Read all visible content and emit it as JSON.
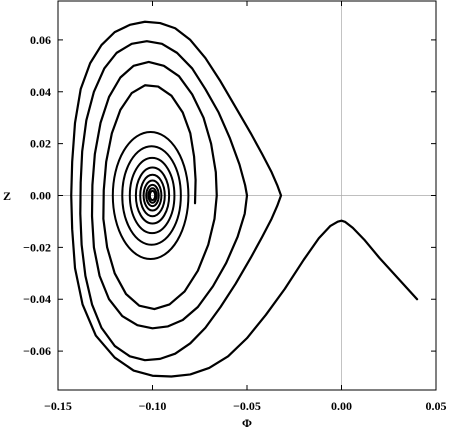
{
  "chart_data": {
    "type": "line",
    "title": "",
    "xlabel": "Φ",
    "ylabel": "Z",
    "xlim": [
      -0.15,
      0.05
    ],
    "ylim": [
      -0.075,
      0.075
    ],
    "x_ticks": [
      -0.15,
      -0.1,
      -0.05,
      0.0,
      0.05
    ],
    "x_tick_labels": [
      "−0.15",
      "−0.10",
      "−0.05",
      "0.00",
      "0.05"
    ],
    "y_ticks": [
      -0.06,
      -0.04,
      -0.02,
      0.0,
      0.02,
      0.04,
      0.06
    ],
    "y_tick_labels": [
      "−0.06",
      "−0.04",
      "−0.02",
      "0.00",
      "0.02",
      "0.04",
      "0.06"
    ],
    "reference_lines": {
      "x": 0.0,
      "y": 0.0
    },
    "grid": false,
    "legend": "none",
    "line_color": "#000000",
    "series": [
      {
        "points": [
          [
            0.04,
            -0.04
          ],
          [
            0.03,
            -0.032
          ],
          [
            0.02,
            -0.024
          ],
          [
            0.012,
            -0.017
          ],
          [
            0.006,
            -0.0125
          ],
          [
            0.002,
            -0.0102
          ],
          [
            0.0,
            -0.0097
          ],
          [
            -0.002,
            -0.0101
          ],
          [
            -0.006,
            -0.0118
          ],
          [
            -0.012,
            -0.0165
          ],
          [
            -0.02,
            -0.0248
          ],
          [
            -0.03,
            -0.036
          ],
          [
            -0.04,
            -0.046
          ],
          [
            -0.05,
            -0.055
          ],
          [
            -0.06,
            -0.062
          ],
          [
            -0.07,
            -0.0665
          ],
          [
            -0.08,
            -0.069
          ],
          [
            -0.09,
            -0.0698
          ],
          [
            -0.1,
            -0.0695
          ],
          [
            -0.11,
            -0.0675
          ],
          [
            -0.12,
            -0.0625
          ],
          [
            -0.13,
            -0.054
          ],
          [
            -0.137,
            -0.042
          ],
          [
            -0.141,
            -0.028
          ],
          [
            -0.1425,
            -0.013
          ],
          [
            -0.143,
            0.0
          ],
          [
            -0.1425,
            0.013
          ],
          [
            -0.141,
            0.028
          ],
          [
            -0.138,
            0.041
          ],
          [
            -0.133,
            0.051
          ],
          [
            -0.127,
            0.058
          ],
          [
            -0.12,
            0.063
          ],
          [
            -0.112,
            0.0658
          ],
          [
            -0.104,
            0.067
          ],
          [
            -0.096,
            0.0665
          ],
          [
            -0.088,
            0.0645
          ],
          [
            -0.08,
            0.06
          ],
          [
            -0.072,
            0.053
          ],
          [
            -0.064,
            0.044
          ],
          [
            -0.056,
            0.034
          ],
          [
            -0.048,
            0.024
          ],
          [
            -0.042,
            0.016
          ],
          [
            -0.037,
            0.009
          ],
          [
            -0.034,
            0.004
          ],
          [
            -0.032,
            0.0
          ],
          [
            -0.034,
            -0.004
          ],
          [
            -0.037,
            -0.009
          ],
          [
            -0.042,
            -0.016
          ],
          [
            -0.048,
            -0.024
          ],
          [
            -0.056,
            -0.034
          ],
          [
            -0.064,
            -0.043
          ],
          [
            -0.072,
            -0.051
          ],
          [
            -0.08,
            -0.057
          ],
          [
            -0.088,
            -0.061
          ],
          [
            -0.096,
            -0.063
          ],
          [
            -0.104,
            -0.0635
          ],
          [
            -0.112,
            -0.062
          ],
          [
            -0.12,
            -0.058
          ],
          [
            -0.127,
            -0.051
          ],
          [
            -0.132,
            -0.042
          ],
          [
            -0.1355,
            -0.031
          ],
          [
            -0.1375,
            -0.019
          ],
          [
            -0.1382,
            -0.007
          ],
          [
            -0.138,
            0.005
          ],
          [
            -0.1372,
            0.017
          ],
          [
            -0.135,
            0.029
          ],
          [
            -0.131,
            0.04
          ],
          [
            -0.1255,
            0.049
          ],
          [
            -0.119,
            0.055
          ],
          [
            -0.111,
            0.0585
          ],
          [
            -0.103,
            0.0595
          ],
          [
            -0.095,
            0.0585
          ],
          [
            -0.087,
            0.055
          ],
          [
            -0.079,
            0.049
          ],
          [
            -0.072,
            0.041
          ],
          [
            -0.065,
            0.032
          ],
          [
            -0.059,
            0.022
          ],
          [
            -0.054,
            0.012
          ],
          [
            -0.051,
            0.004
          ],
          [
            -0.05,
            0.0
          ],
          [
            -0.0512,
            -0.007
          ],
          [
            -0.055,
            -0.016
          ],
          [
            -0.061,
            -0.026
          ],
          [
            -0.068,
            -0.035
          ],
          [
            -0.076,
            -0.043
          ],
          [
            -0.084,
            -0.048
          ],
          [
            -0.092,
            -0.0505
          ],
          [
            -0.1,
            -0.0512
          ],
          [
            -0.108,
            -0.05
          ],
          [
            -0.116,
            -0.0465
          ],
          [
            -0.123,
            -0.04
          ],
          [
            -0.128,
            -0.031
          ],
          [
            -0.131,
            -0.02
          ],
          [
            -0.132,
            -0.008
          ],
          [
            -0.1318,
            0.004
          ],
          [
            -0.1305,
            0.016
          ],
          [
            -0.1275,
            0.028
          ],
          [
            -0.123,
            0.038
          ],
          [
            -0.117,
            0.0455
          ],
          [
            -0.11,
            0.05
          ],
          [
            -0.102,
            0.0515
          ],
          [
            -0.094,
            0.05
          ],
          [
            -0.086,
            0.046
          ],
          [
            -0.079,
            0.039
          ],
          [
            -0.073,
            0.03
          ],
          [
            -0.069,
            0.02
          ],
          [
            -0.0665,
            0.009
          ],
          [
            -0.066,
            0.0
          ],
          [
            -0.0672,
            -0.009
          ],
          [
            -0.0705,
            -0.019
          ],
          [
            -0.076,
            -0.029
          ],
          [
            -0.083,
            -0.037
          ],
          [
            -0.091,
            -0.042
          ],
          [
            -0.099,
            -0.0438
          ],
          [
            -0.107,
            -0.0425
          ],
          [
            -0.114,
            -0.038
          ],
          [
            -0.12,
            -0.03
          ],
          [
            -0.124,
            -0.02
          ],
          [
            -0.126,
            -0.009
          ],
          [
            -0.1258,
            0.002
          ],
          [
            -0.1245,
            0.013
          ],
          [
            -0.1215,
            0.024
          ],
          [
            -0.117,
            0.033
          ],
          [
            -0.111,
            0.0395
          ],
          [
            -0.104,
            0.0425
          ],
          [
            -0.097,
            0.042
          ],
          [
            -0.09,
            0.0385
          ],
          [
            -0.084,
            0.032
          ],
          [
            -0.08,
            0.024
          ],
          [
            -0.078,
            0.015
          ],
          [
            -0.0772,
            0.006
          ],
          [
            -0.0775,
            -0.003
          ]
        ]
      }
    ],
    "closed_orbits": [
      {
        "center": [
          -0.101,
          0.0
        ],
        "half_width": 0.02,
        "half_height": 0.0245
      },
      {
        "center": [
          -0.1005,
          0.0
        ],
        "half_width": 0.0155,
        "half_height": 0.019
      },
      {
        "center": [
          -0.1002,
          0.0
        ],
        "half_width": 0.0118,
        "half_height": 0.0145
      },
      {
        "center": [
          -0.1,
          0.0
        ],
        "half_width": 0.0088,
        "half_height": 0.0108
      },
      {
        "center": [
          -0.1,
          0.0
        ],
        "half_width": 0.0065,
        "half_height": 0.008
      },
      {
        "center": [
          -0.1,
          0.0
        ],
        "half_width": 0.0047,
        "half_height": 0.0058
      },
      {
        "center": [
          -0.1,
          0.0
        ],
        "half_width": 0.0033,
        "half_height": 0.0041
      },
      {
        "center": [
          -0.1,
          0.0
        ],
        "half_width": 0.0022,
        "half_height": 0.0028
      },
      {
        "center": [
          -0.1,
          0.0
        ],
        "half_width": 0.0014,
        "half_height": 0.0018
      }
    ]
  }
}
